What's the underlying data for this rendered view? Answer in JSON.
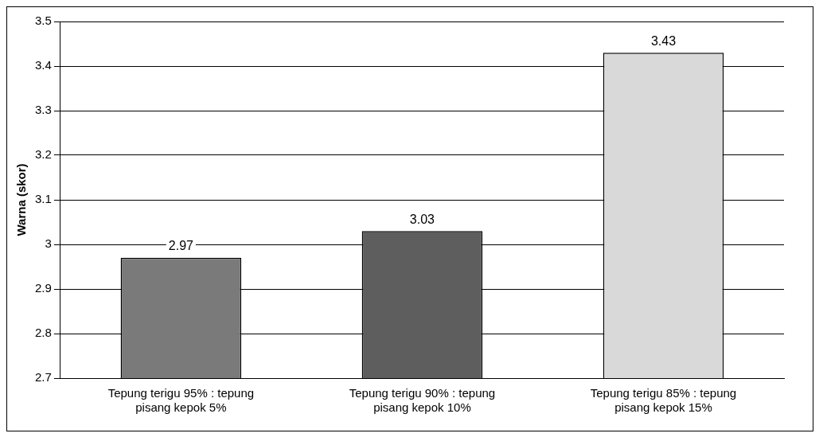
{
  "chart_data": {
    "type": "bar",
    "ylabel": "Warna (skor)",
    "categories": [
      "Tepung terigu 95% : tepung pisang kepok 5%",
      "Tepung terigu 90% : tepung pisang kepok 10%",
      "Tepung terigu 85% : tepung pisang kepok 15%"
    ],
    "values": [
      2.97,
      3.03,
      3.43
    ],
    "colors": [
      "#7a7a7a",
      "#5e5e5e",
      "#d9d9d9"
    ],
    "ylim": [
      2.7,
      3.5
    ],
    "yticks": [
      2.7,
      2.8,
      2.9,
      3,
      3.1,
      3.2,
      3.3,
      3.4,
      3.5
    ],
    "grid": "y",
    "data_labels": true,
    "legend": false
  }
}
